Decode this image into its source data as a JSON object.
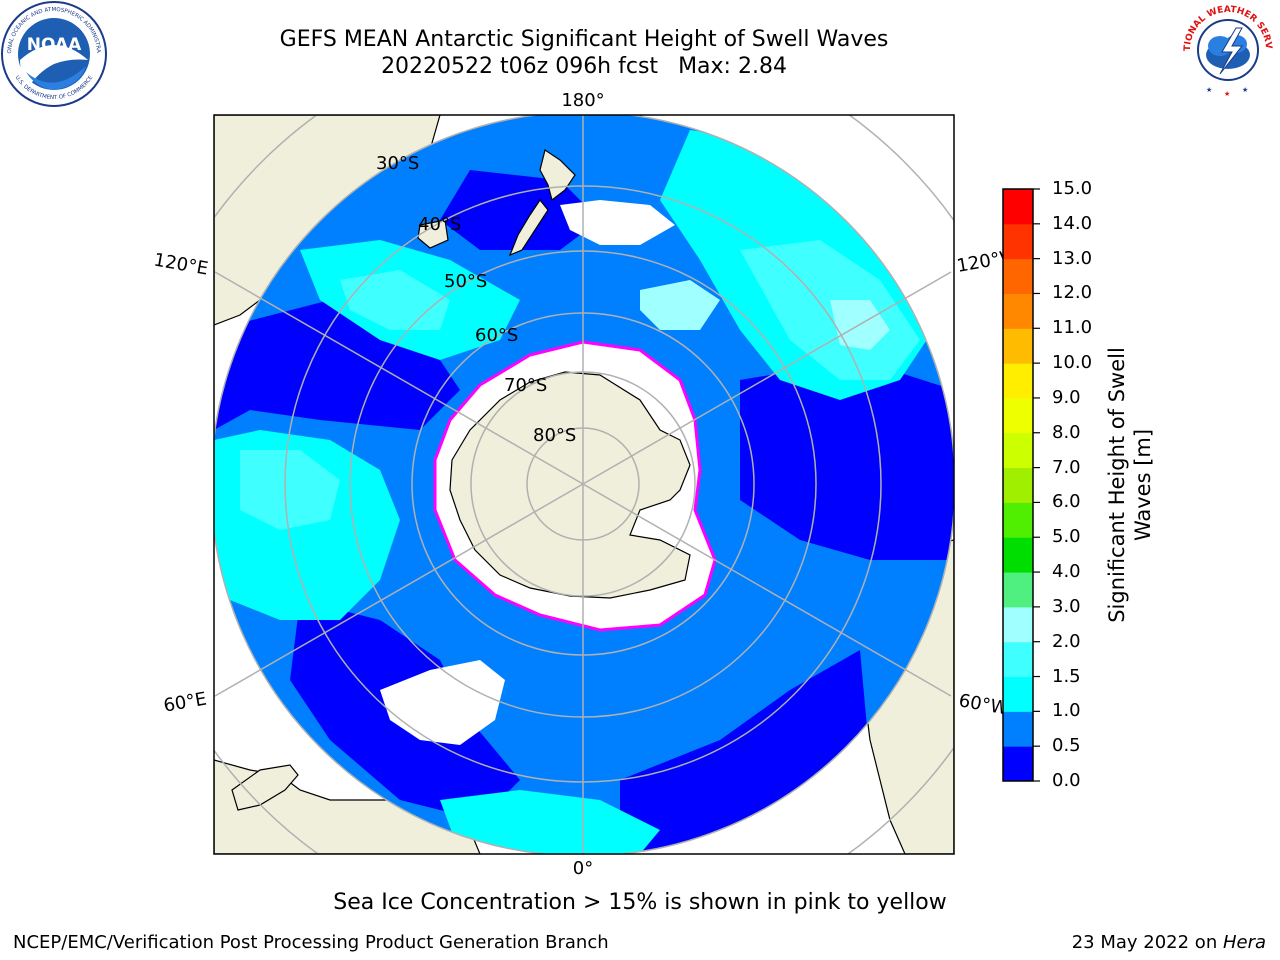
{
  "header": {
    "title_line1": "GEFS MEAN Antarctic Significant Height of Swell Waves",
    "title_line2_date": "20220522 t06z 096h fcst",
    "title_line2_max": "Max: 2.84"
  },
  "logos": {
    "left": {
      "name": "noaa-logo",
      "text": "NOAA",
      "ring_text": "NATIONAL OCEANIC AND ATMOSPHERIC ADMINISTRATION",
      "bottom_text": "U.S. DEPARTMENT OF COMMERCE"
    },
    "right": {
      "name": "nws-logo",
      "ring_text": "NATIONAL WEATHER SERVICE"
    }
  },
  "map": {
    "projection": "south-polar-stereographic",
    "longitude_labels": [
      "180°",
      "120°E",
      "120°W",
      "60°E",
      "60°W",
      "0°"
    ],
    "latitude_labels": [
      "30°S",
      "40°S",
      "50°S",
      "60°S",
      "70°S",
      "80°S"
    ],
    "colors": {
      "land": "#efefdc",
      "ice": "#ffffff",
      "grid": "#b0b0b0",
      "coast": "#000000",
      "ice_edge": "#ff00ff"
    }
  },
  "colorbar": {
    "label": "Significant Height of Swell Waves [m]",
    "label_line1": "Significant Height of Swell",
    "label_line2": "Waves [m]",
    "ticks": [
      "0.0",
      "0.5",
      "1.0",
      "1.5",
      "2.0",
      "3.0",
      "4.0",
      "5.0",
      "6.0",
      "7.0",
      "8.0",
      "9.0",
      "10.0",
      "11.0",
      "12.0",
      "13.0",
      "14.0",
      "15.0"
    ],
    "colors": [
      "#0000ff",
      "#0080ff",
      "#00ffff",
      "#40ffff",
      "#a0ffff",
      "#50f080",
      "#00dd00",
      "#50ee00",
      "#a0ee00",
      "#ccff00",
      "#eeff00",
      "#ffee00",
      "#ffbb00",
      "#ff8800",
      "#ff6600",
      "#ff3300",
      "#ff0000"
    ]
  },
  "chart_data": {
    "type": "heatmap",
    "title": "GEFS MEAN Antarctic Significant Height of Swell Waves",
    "subtitle": "20220522 t06z 096h fcst   Max: 2.84",
    "colorbar_label": "Significant Height of Swell Waves [m]",
    "levels": [
      0.0,
      0.5,
      1.0,
      1.5,
      2.0,
      3.0,
      4.0,
      5.0,
      6.0,
      7.0,
      8.0,
      9.0,
      10.0,
      11.0,
      12.0,
      13.0,
      14.0,
      15.0
    ],
    "vmin": 0.0,
    "vmax": 15.0,
    "max_value": 2.84
  },
  "footer": {
    "note": "Sea Ice Concentration > 15% is shown in pink to yellow",
    "left": "NCEP/EMC/Verification Post Processing Product Generation Branch",
    "right_date": "23 May 2022 on ",
    "right_host": "Hera"
  }
}
